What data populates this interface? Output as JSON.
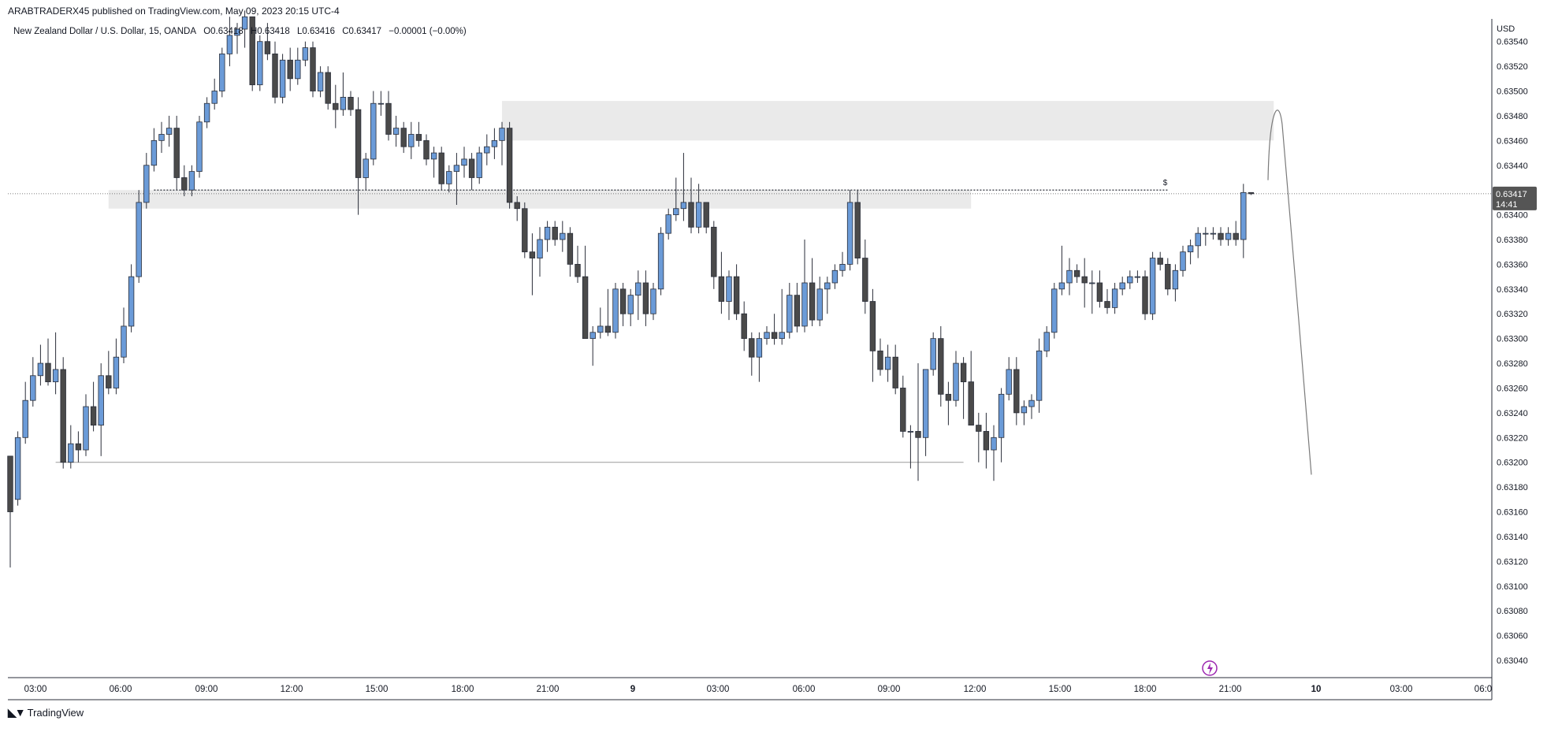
{
  "header": {
    "published": "ARABTRADERX45 published on TradingView.com, May 09, 2023 20:15 UTC-4",
    "symbol": "New Zealand Dollar / U.S. Dollar, 15, OANDA",
    "ohlc": {
      "open": "O0.63418",
      "high": "H0.63418",
      "low": "L0.63416",
      "close": "C0.63417",
      "change": "−0.00001 (−0.00%)"
    }
  },
  "footer": {
    "brand": "TradingView"
  },
  "price_axis": {
    "currency": "USD"
  },
  "last_price": {
    "value": "0.63417",
    "countdown": "14:41"
  },
  "colors": {
    "up": "#6b9bd8",
    "down": "#4a4a4a",
    "zone": "#e5e5e5",
    "last_price_bg": "#555555",
    "alert_icon": "#9c27b0"
  },
  "icons": [
    "lightning-alert-icon",
    "tradingview-logo-icon"
  ],
  "chart_data": {
    "type": "candlestick",
    "title": "",
    "xlabel": "",
    "ylabel": "USD",
    "ylim": [
      0.63026,
      0.63557
    ],
    "grid": false,
    "y_ticks": [
      "0.63040",
      "0.63060",
      "0.63080",
      "0.63100",
      "0.63120",
      "0.63140",
      "0.63160",
      "0.63180",
      "0.63200",
      "0.63220",
      "0.63240",
      "0.63260",
      "0.63280",
      "0.63300",
      "0.63320",
      "0.63340",
      "0.63360",
      "0.63380",
      "0.63400",
      "0.63420",
      "0.63440",
      "0.63460",
      "0.63480",
      "0.63500",
      "0.63520",
      "0.63540"
    ],
    "x_ticks": [
      "03:00",
      "06:00",
      "09:00",
      "12:00",
      "15:00",
      "18:00",
      "21:00",
      "9",
      "03:00",
      "06:00",
      "09:00",
      "12:00",
      "15:00",
      "18:00",
      "21:00",
      "10",
      "03:00",
      "06:0"
    ],
    "series": [
      {
        "values": [
          [
            0.63205,
            0.63205,
            0.63115,
            0.6316
          ],
          [
            0.6317,
            0.63225,
            0.63165,
            0.6322
          ],
          [
            0.6322,
            0.63265,
            0.63215,
            0.6325
          ],
          [
            0.6325,
            0.63285,
            0.63245,
            0.6327
          ],
          [
            0.6327,
            0.63295,
            0.63262,
            0.6328
          ],
          [
            0.6328,
            0.633,
            0.63262,
            0.63265
          ],
          [
            0.63265,
            0.63305,
            0.63255,
            0.63275
          ],
          [
            0.63275,
            0.63285,
            0.63195,
            0.632
          ],
          [
            0.632,
            0.6323,
            0.63195,
            0.63215
          ],
          [
            0.63215,
            0.63225,
            0.632,
            0.6321
          ],
          [
            0.6321,
            0.63255,
            0.63205,
            0.63245
          ],
          [
            0.63245,
            0.63265,
            0.63225,
            0.6323
          ],
          [
            0.6323,
            0.6328,
            0.63205,
            0.6327
          ],
          [
            0.6327,
            0.6329,
            0.63255,
            0.6326
          ],
          [
            0.6326,
            0.633,
            0.63255,
            0.63285
          ],
          [
            0.63285,
            0.63325,
            0.6328,
            0.6331
          ],
          [
            0.6331,
            0.6336,
            0.63305,
            0.6335
          ],
          [
            0.6335,
            0.6342,
            0.63345,
            0.6341
          ],
          [
            0.6341,
            0.6345,
            0.63405,
            0.6344
          ],
          [
            0.6344,
            0.6347,
            0.63435,
            0.6346
          ],
          [
            0.6346,
            0.63475,
            0.6345,
            0.63465
          ],
          [
            0.63465,
            0.6348,
            0.63455,
            0.6347
          ],
          [
            0.6347,
            0.6348,
            0.6342,
            0.6343
          ],
          [
            0.6343,
            0.6344,
            0.63415,
            0.6342
          ],
          [
            0.6342,
            0.6344,
            0.63415,
            0.63435
          ],
          [
            0.63435,
            0.6348,
            0.6343,
            0.63475
          ],
          [
            0.63475,
            0.63495,
            0.6347,
            0.6349
          ],
          [
            0.6349,
            0.6351,
            0.63485,
            0.635
          ],
          [
            0.635,
            0.63535,
            0.63495,
            0.6353
          ],
          [
            0.6353,
            0.6356,
            0.6352,
            0.63545
          ],
          [
            0.63545,
            0.63555,
            0.6353,
            0.6355
          ],
          [
            0.6355,
            0.63565,
            0.63535,
            0.6356
          ],
          [
            0.6356,
            0.6356,
            0.635,
            0.63505
          ],
          [
            0.63505,
            0.63545,
            0.635,
            0.6354
          ],
          [
            0.6354,
            0.63555,
            0.63525,
            0.6353
          ],
          [
            0.6353,
            0.6354,
            0.6349,
            0.63495
          ],
          [
            0.63495,
            0.6353,
            0.6349,
            0.63525
          ],
          [
            0.63525,
            0.63535,
            0.635,
            0.6351
          ],
          [
            0.6351,
            0.63535,
            0.63505,
            0.63525
          ],
          [
            0.63525,
            0.6354,
            0.6352,
            0.63535
          ],
          [
            0.63535,
            0.6354,
            0.63495,
            0.635
          ],
          [
            0.635,
            0.6352,
            0.63495,
            0.63515
          ],
          [
            0.63515,
            0.6352,
            0.63485,
            0.6349
          ],
          [
            0.6349,
            0.63505,
            0.6347,
            0.63485
          ],
          [
            0.63485,
            0.63515,
            0.6348,
            0.63495
          ],
          [
            0.63495,
            0.635,
            0.6348,
            0.63485
          ],
          [
            0.63485,
            0.63495,
            0.634,
            0.6343
          ],
          [
            0.6343,
            0.6345,
            0.6342,
            0.63445
          ],
          [
            0.63445,
            0.635,
            0.6344,
            0.6349
          ],
          [
            0.6349,
            0.635,
            0.6348,
            0.6349
          ],
          [
            0.6349,
            0.635,
            0.6346,
            0.63465
          ],
          [
            0.63465,
            0.6348,
            0.63455,
            0.6347
          ],
          [
            0.6347,
            0.63475,
            0.6345,
            0.63455
          ],
          [
            0.63455,
            0.63475,
            0.63445,
            0.63465
          ],
          [
            0.63465,
            0.63475,
            0.63455,
            0.6346
          ],
          [
            0.6346,
            0.63465,
            0.6344,
            0.63445
          ],
          [
            0.63445,
            0.63455,
            0.6343,
            0.6345
          ],
          [
            0.6345,
            0.63455,
            0.6342,
            0.63425
          ],
          [
            0.63425,
            0.6344,
            0.63418,
            0.63435
          ],
          [
            0.63435,
            0.6345,
            0.63408,
            0.6344
          ],
          [
            0.6344,
            0.63455,
            0.6343,
            0.63445
          ],
          [
            0.63445,
            0.6345,
            0.6342,
            0.6343
          ],
          [
            0.6343,
            0.63455,
            0.63425,
            0.6345
          ],
          [
            0.6345,
            0.63465,
            0.6344,
            0.63455
          ],
          [
            0.63455,
            0.6347,
            0.63445,
            0.6346
          ],
          [
            0.6346,
            0.63475,
            0.6344,
            0.6347
          ],
          [
            0.6347,
            0.63475,
            0.63405,
            0.6341
          ],
          [
            0.6341,
            0.63415,
            0.63395,
            0.63405
          ],
          [
            0.63405,
            0.6341,
            0.63365,
            0.6337
          ],
          [
            0.6337,
            0.63385,
            0.63335,
            0.63365
          ],
          [
            0.63365,
            0.6339,
            0.6335,
            0.6338
          ],
          [
            0.6338,
            0.63395,
            0.6337,
            0.6339
          ],
          [
            0.6339,
            0.63395,
            0.63375,
            0.6338
          ],
          [
            0.6338,
            0.63395,
            0.6337,
            0.63385
          ],
          [
            0.63385,
            0.6339,
            0.6335,
            0.6336
          ],
          [
            0.6336,
            0.63375,
            0.63345,
            0.6335
          ],
          [
            0.6335,
            0.63375,
            0.63345,
            0.633
          ],
          [
            0.633,
            0.6331,
            0.63278,
            0.63305
          ],
          [
            0.63305,
            0.63325,
            0.633,
            0.6331
          ],
          [
            0.6331,
            0.6334,
            0.63302,
            0.63305
          ],
          [
            0.63305,
            0.63345,
            0.633,
            0.6334
          ],
          [
            0.6334,
            0.63345,
            0.6331,
            0.6332
          ],
          [
            0.6332,
            0.6334,
            0.6331,
            0.63335
          ],
          [
            0.63335,
            0.63355,
            0.63315,
            0.63345
          ],
          [
            0.63345,
            0.63355,
            0.6331,
            0.6332
          ],
          [
            0.6332,
            0.63345,
            0.63315,
            0.6334
          ],
          [
            0.6334,
            0.6339,
            0.63335,
            0.63385
          ],
          [
            0.63385,
            0.63405,
            0.6338,
            0.634
          ],
          [
            0.634,
            0.6343,
            0.63395,
            0.63405
          ],
          [
            0.63405,
            0.6345,
            0.63395,
            0.6341
          ],
          [
            0.6341,
            0.6343,
            0.63385,
            0.6339
          ],
          [
            0.6339,
            0.63425,
            0.63385,
            0.6341
          ],
          [
            0.6341,
            0.6341,
            0.63385,
            0.6339
          ],
          [
            0.6339,
            0.63395,
            0.6334,
            0.6335
          ],
          [
            0.6335,
            0.6337,
            0.6332,
            0.6333
          ],
          [
            0.6333,
            0.63355,
            0.63315,
            0.6335
          ],
          [
            0.6335,
            0.6336,
            0.63315,
            0.6332
          ],
          [
            0.6332,
            0.6333,
            0.6329,
            0.633
          ],
          [
            0.633,
            0.63305,
            0.6327,
            0.63285
          ],
          [
            0.63285,
            0.63305,
            0.63265,
            0.633
          ],
          [
            0.633,
            0.6331,
            0.63295,
            0.63305
          ],
          [
            0.63305,
            0.6332,
            0.63295,
            0.633
          ],
          [
            0.633,
            0.6334,
            0.63295,
            0.63305
          ],
          [
            0.63305,
            0.63345,
            0.633,
            0.63335
          ],
          [
            0.63335,
            0.63345,
            0.63305,
            0.6331
          ],
          [
            0.6331,
            0.6338,
            0.63305,
            0.63345
          ],
          [
            0.63345,
            0.63365,
            0.6331,
            0.63315
          ],
          [
            0.63315,
            0.6335,
            0.6331,
            0.6334
          ],
          [
            0.6334,
            0.6335,
            0.6332,
            0.63345
          ],
          [
            0.63345,
            0.6336,
            0.6334,
            0.63355
          ],
          [
            0.63355,
            0.6337,
            0.6335,
            0.6336
          ],
          [
            0.6336,
            0.6342,
            0.63355,
            0.6341
          ],
          [
            0.6341,
            0.6342,
            0.6336,
            0.63365
          ],
          [
            0.63365,
            0.6338,
            0.6332,
            0.6333
          ],
          [
            0.6333,
            0.6334,
            0.63265,
            0.6329
          ],
          [
            0.6329,
            0.633,
            0.6327,
            0.63275
          ],
          [
            0.63275,
            0.63295,
            0.63265,
            0.63285
          ],
          [
            0.63285,
            0.63295,
            0.63255,
            0.6326
          ],
          [
            0.6326,
            0.6327,
            0.6322,
            0.63225
          ],
          [
            0.63225,
            0.6323,
            0.63195,
            0.63225
          ],
          [
            0.63225,
            0.6328,
            0.63185,
            0.6322
          ],
          [
            0.6322,
            0.63275,
            0.63205,
            0.63275
          ],
          [
            0.63275,
            0.63305,
            0.6327,
            0.633
          ],
          [
            0.633,
            0.6331,
            0.63245,
            0.63255
          ],
          [
            0.63255,
            0.63265,
            0.6323,
            0.6325
          ],
          [
            0.6325,
            0.6329,
            0.63245,
            0.6328
          ],
          [
            0.6328,
            0.63285,
            0.63235,
            0.63265
          ],
          [
            0.63265,
            0.6329,
            0.63245,
            0.6323
          ],
          [
            0.6323,
            0.6324,
            0.632,
            0.63225
          ],
          [
            0.63225,
            0.6324,
            0.63195,
            0.6321
          ],
          [
            0.6321,
            0.6323,
            0.63185,
            0.6322
          ],
          [
            0.6322,
            0.6326,
            0.632,
            0.63255
          ],
          [
            0.63255,
            0.63285,
            0.6325,
            0.63275
          ],
          [
            0.63275,
            0.63285,
            0.6323,
            0.6324
          ],
          [
            0.6324,
            0.6325,
            0.6323,
            0.63245
          ],
          [
            0.63245,
            0.63255,
            0.63235,
            0.6325
          ],
          [
            0.6325,
            0.633,
            0.6324,
            0.6329
          ],
          [
            0.6329,
            0.6331,
            0.63285,
            0.63305
          ],
          [
            0.63305,
            0.63345,
            0.633,
            0.6334
          ],
          [
            0.6334,
            0.63375,
            0.63335,
            0.63345
          ],
          [
            0.63345,
            0.63365,
            0.63335,
            0.63355
          ],
          [
            0.63355,
            0.6336,
            0.63345,
            0.6335
          ],
          [
            0.6335,
            0.63365,
            0.63325,
            0.63345
          ],
          [
            0.63345,
            0.63355,
            0.6332,
            0.63345
          ],
          [
            0.63345,
            0.63355,
            0.63325,
            0.6333
          ],
          [
            0.6333,
            0.6334,
            0.6332,
            0.63325
          ],
          [
            0.63325,
            0.63345,
            0.6332,
            0.6334
          ],
          [
            0.6334,
            0.6335,
            0.63335,
            0.63345
          ],
          [
            0.63345,
            0.63355,
            0.6334,
            0.6335
          ],
          [
            0.6335,
            0.63355,
            0.63345,
            0.6335
          ],
          [
            0.6335,
            0.63355,
            0.63315,
            0.6332
          ],
          [
            0.6332,
            0.6337,
            0.63315,
            0.63365
          ],
          [
            0.63365,
            0.6337,
            0.63355,
            0.6336
          ],
          [
            0.6336,
            0.63365,
            0.63335,
            0.6334
          ],
          [
            0.6334,
            0.6336,
            0.6333,
            0.63355
          ],
          [
            0.63355,
            0.63375,
            0.6335,
            0.6337
          ],
          [
            0.6337,
            0.6338,
            0.6336,
            0.63375
          ],
          [
            0.63375,
            0.6339,
            0.63365,
            0.63385
          ],
          [
            0.63385,
            0.6339,
            0.63375,
            0.63385
          ],
          [
            0.63385,
            0.6339,
            0.6338,
            0.63385
          ],
          [
            0.63385,
            0.6339,
            0.63375,
            0.6338
          ],
          [
            0.6338,
            0.6339,
            0.63375,
            0.63385
          ],
          [
            0.63385,
            0.63395,
            0.63375,
            0.6338
          ],
          [
            0.6338,
            0.63425,
            0.63365,
            0.63418
          ],
          [
            0.63418,
            0.63418,
            0.63416,
            0.63417
          ]
        ]
      }
    ],
    "zones": [
      {
        "from": 0.63405,
        "to": 0.6342,
        "x_start": 13,
        "x_end": 127
      },
      {
        "from": 0.6346,
        "to": 0.63492,
        "x_start": 65,
        "x_end": 167
      }
    ],
    "levels": [
      {
        "price": 0.6342,
        "style": "dotted",
        "x_start": 19,
        "x_end": 153,
        "marker": "$"
      },
      {
        "price": 0.632,
        "style": "solid",
        "x_start": 6,
        "x_end": 126
      },
      {
        "price": 0.63417,
        "style": "dotted-full",
        "label": "0.63417"
      }
    ],
    "projection": {
      "style": "arc",
      "from_price": 0.63428,
      "peak_price": 0.63476,
      "to_price": 0.6319
    }
  }
}
